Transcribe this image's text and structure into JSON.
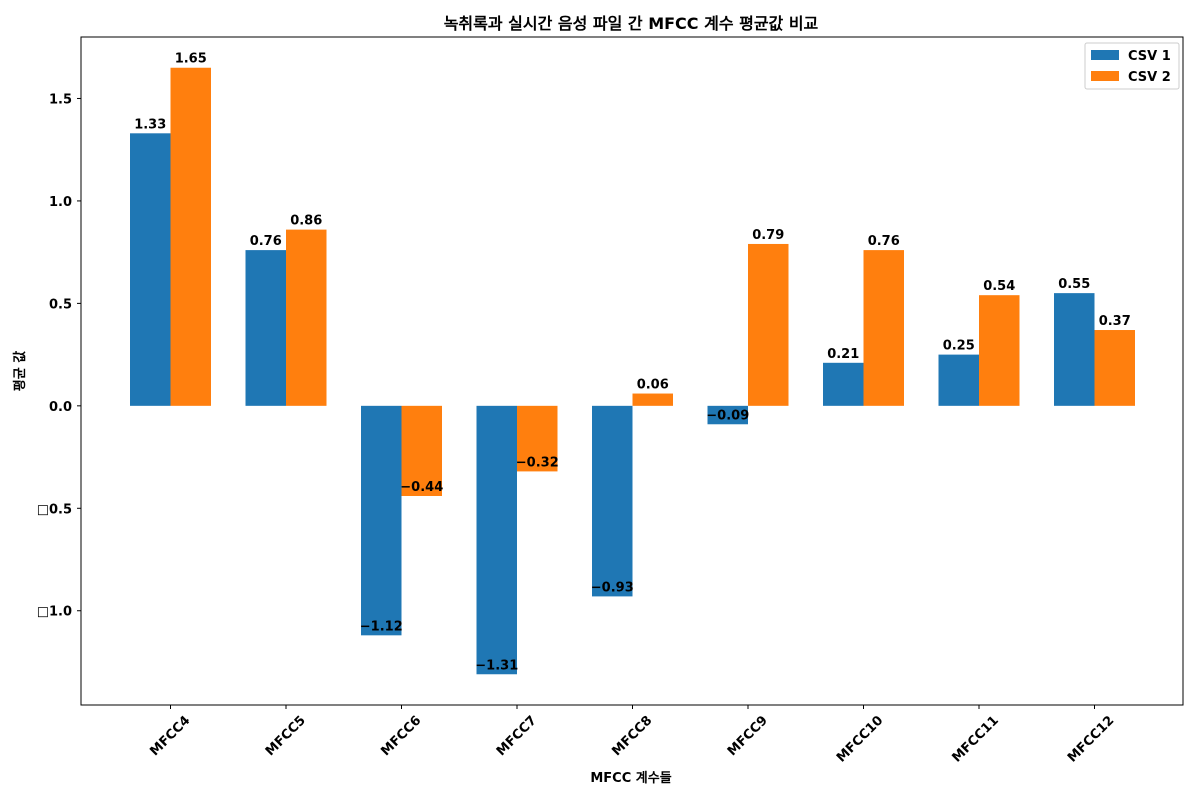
{
  "chart_data": {
    "type": "bar",
    "title": "녹취록과 실시간 음성 파일 간 MFCC 계수 평균값 비교",
    "xlabel": "MFCC 계수들",
    "ylabel": "평균 값",
    "categories": [
      "MFCC4",
      "MFCC5",
      "MFCC6",
      "MFCC7",
      "MFCC8",
      "MFCC9",
      "MFCC10",
      "MFCC11",
      "MFCC12"
    ],
    "series": [
      {
        "name": "CSV 1",
        "color": "#1f77b4",
        "values": [
          1.33,
          0.76,
          -1.12,
          -1.31,
          -0.93,
          -0.09,
          0.21,
          0.25,
          0.55
        ],
        "labels": [
          "1.33",
          "0.76",
          "−1.12",
          "−1.31",
          "−0.93",
          "−0.09",
          "0.21",
          "0.25",
          "0.55"
        ]
      },
      {
        "name": "CSV 2",
        "color": "#ff7f0e",
        "values": [
          1.65,
          0.86,
          -0.44,
          -0.32,
          0.06,
          0.79,
          0.76,
          0.54,
          0.37
        ],
        "labels": [
          "1.65",
          "0.86",
          "−0.44",
          "−0.32",
          "0.06",
          "0.79",
          "0.76",
          "0.54",
          "0.37"
        ]
      }
    ],
    "ylim": [
      -1.46,
      1.8
    ],
    "yticks": [
      -1.0,
      -0.5,
      0.0,
      0.5,
      1.0,
      1.5
    ],
    "ytick_labels": [
      "□1.0",
      "□0.5",
      "0.0",
      "0.5",
      "1.0",
      "1.5"
    ],
    "grid": false,
    "legend_position": "top-right"
  }
}
